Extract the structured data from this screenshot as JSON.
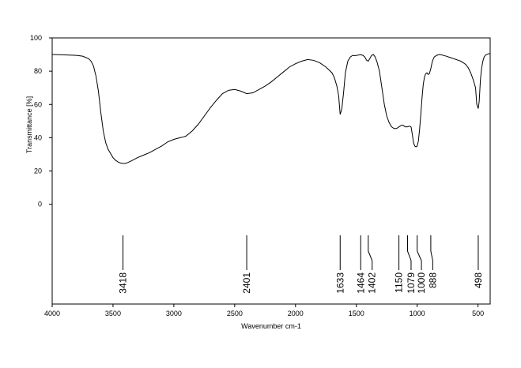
{
  "chart_data": {
    "type": "line",
    "xlabel": "Wavenumber cm-1",
    "ylabel": "Transmittance [%]",
    "xlim": [
      4000,
      400
    ],
    "ylim": [
      -60,
      100
    ],
    "x_ticks": [
      4000,
      3500,
      3000,
      2500,
      2000,
      1500,
      1000,
      500
    ],
    "y_ticks": [
      0,
      20,
      40,
      60,
      80,
      100
    ],
    "grid": false,
    "legend": "none",
    "line_color": "#000000",
    "series": [
      {
        "x": [
          4000,
          3900,
          3800,
          3750,
          3700,
          3680,
          3660,
          3640,
          3620,
          3600,
          3580,
          3560,
          3540,
          3520,
          3500,
          3480,
          3460,
          3440,
          3418,
          3400,
          3380,
          3350,
          3300,
          3250,
          3200,
          3150,
          3100,
          3050,
          3000,
          2950,
          2920,
          2900,
          2850,
          2800,
          2750,
          2700,
          2650,
          2600,
          2550,
          2500,
          2450,
          2401,
          2350,
          2300,
          2250,
          2200,
          2150,
          2100,
          2050,
          2000,
          1950,
          1900,
          1850,
          1800,
          1750,
          1700,
          1680,
          1660,
          1645,
          1633,
          1620,
          1605,
          1590,
          1570,
          1550,
          1530,
          1510,
          1490,
          1464,
          1445,
          1430,
          1415,
          1402,
          1390,
          1375,
          1360,
          1345,
          1330,
          1310,
          1290,
          1270,
          1250,
          1230,
          1210,
          1190,
          1170,
          1150,
          1130,
          1115,
          1100,
          1079,
          1065,
          1050,
          1040,
          1030,
          1020,
          1010,
          1000,
          990,
          980,
          970,
          960,
          950,
          940,
          930,
          920,
          910,
          900,
          888,
          875,
          860,
          840,
          820,
          800,
          780,
          760,
          740,
          720,
          700,
          680,
          660,
          640,
          620,
          600,
          580,
          560,
          540,
          520,
          510,
          498,
          490,
          480,
          470,
          460,
          450,
          440,
          430,
          420,
          410,
          400
        ],
        "y": [
          90,
          89.8,
          89.5,
          89,
          87.5,
          86,
          83,
          77,
          68,
          55,
          44,
          37,
          33,
          30.5,
          28,
          26.5,
          25.5,
          24.8,
          24.5,
          24.5,
          25,
          26,
          28,
          29.5,
          31,
          33,
          35,
          37.5,
          39,
          40,
          40.5,
          41,
          44,
          48,
          53,
          58,
          62.5,
          66.5,
          68.5,
          69,
          68,
          66.5,
          67,
          69,
          71,
          73.5,
          76.5,
          79.5,
          82.5,
          84.5,
          86,
          87,
          86.5,
          85,
          82.5,
          79,
          76,
          71,
          65,
          54,
          57,
          67,
          79,
          86,
          88.5,
          89.5,
          89.3,
          89.6,
          89.9,
          89.5,
          88.5,
          86.5,
          86,
          87.5,
          89.5,
          90,
          88.5,
          85.5,
          80,
          70,
          60,
          53,
          49,
          46.5,
          45.5,
          45.5,
          46.5,
          47.5,
          47.5,
          46.5,
          46.5,
          47,
          46.5,
          42,
          37,
          35,
          34.5,
          35,
          38,
          45,
          54,
          64,
          72,
          76.5,
          78.5,
          79,
          78,
          78.5,
          81.5,
          86,
          88.5,
          89.5,
          90,
          89.8,
          89.4,
          89,
          88.5,
          88,
          87.5,
          87,
          86.5,
          86,
          85,
          84,
          82,
          79,
          75,
          70,
          60,
          57.5,
          62,
          75,
          82,
          86,
          88.5,
          89.5,
          90,
          90.3,
          90.5,
          90.6
        ]
      }
    ],
    "peaks": [
      {
        "label": "3418",
        "x": 3418,
        "label_x": 3418
      },
      {
        "label": "2401",
        "x": 2401,
        "label_x": 2401
      },
      {
        "label": "1633",
        "x": 1633,
        "label_x": 1633
      },
      {
        "label": "1464",
        "x": 1464,
        "label_x": 1464
      },
      {
        "label": "1402",
        "x": 1402,
        "label_x": 1370
      },
      {
        "label": "1150",
        "x": 1150,
        "label_x": 1150
      },
      {
        "label": "1079",
        "x": 1079,
        "label_x": 1050
      },
      {
        "label": "1000",
        "x": 1000,
        "label_x": 965
      },
      {
        "label": "888",
        "x": 888,
        "label_x": 872
      },
      {
        "label": "498",
        "x": 498,
        "label_x": 498
      }
    ]
  }
}
